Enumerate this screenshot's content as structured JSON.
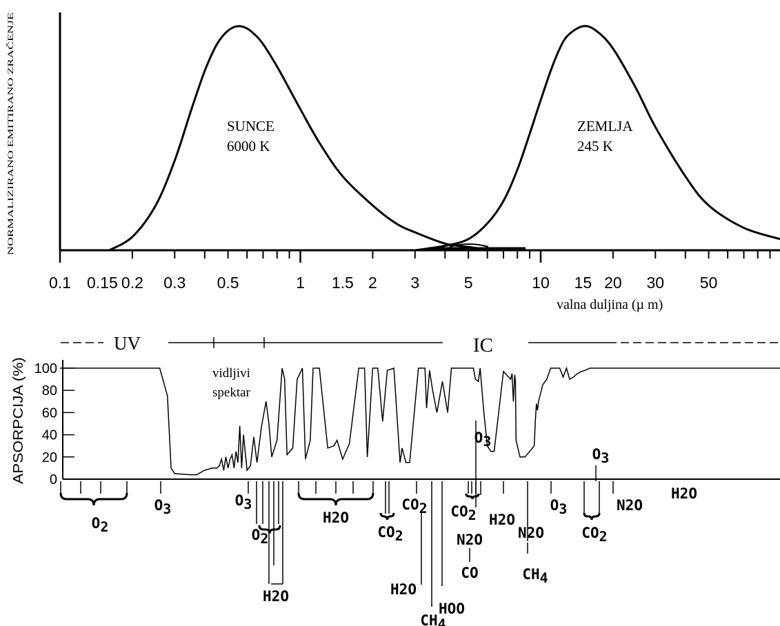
{
  "chart_data": [
    {
      "type": "line",
      "title": "",
      "ylabel": "NORMALIZIRANO EMITIRANO ZRAČENJE",
      "xlabel": "valna duljina (µ m)",
      "xscale": "log",
      "xlim": [
        0.1,
        100
      ],
      "ylim": [
        0,
        1
      ],
      "tick_labels": [
        "0.1",
        "0.15",
        "0.2",
        "0.3",
        "0.5",
        "1",
        "1.5",
        "2",
        "3",
        "5",
        "10",
        "15",
        "20",
        "30",
        "50"
      ],
      "grid": false,
      "series": [
        {
          "name": "SUNCE",
          "label_lines": [
            "SUNCE",
            "6000 K"
          ],
          "x": [
            0.16,
            0.2,
            0.25,
            0.3,
            0.35,
            0.4,
            0.45,
            0.5,
            0.55,
            0.6,
            0.65,
            0.7,
            0.8,
            0.9,
            1.0,
            1.2,
            1.5,
            2.0,
            2.5,
            3.0,
            4.0,
            5.0,
            6.0,
            8.0
          ],
          "y": [
            0.0,
            0.06,
            0.2,
            0.4,
            0.62,
            0.8,
            0.92,
            0.98,
            1.0,
            0.99,
            0.96,
            0.92,
            0.82,
            0.72,
            0.63,
            0.48,
            0.33,
            0.2,
            0.12,
            0.08,
            0.03,
            0.015,
            0.005,
            0.0
          ]
        },
        {
          "name": "ZEMLJA",
          "label_lines": [
            "ZEMLJA",
            "245 K"
          ],
          "x": [
            3.0,
            4.0,
            5.0,
            6.0,
            7.0,
            8.0,
            9.0,
            10.0,
            11.0,
            12.0,
            13.0,
            15.0,
            17.0,
            20.0,
            25.0,
            30.0,
            40.0,
            50.0,
            70.0,
            100.0
          ],
          "y": [
            0.0,
            0.02,
            0.05,
            0.12,
            0.22,
            0.36,
            0.52,
            0.67,
            0.8,
            0.9,
            0.96,
            1.0,
            0.98,
            0.9,
            0.72,
            0.55,
            0.33,
            0.2,
            0.1,
            0.05
          ]
        }
      ]
    },
    {
      "type": "line",
      "title": "",
      "ylabel": "APSORPCIJA (%)",
      "xscale": "log",
      "xlim": [
        0.1,
        100
      ],
      "ylim": [
        0,
        100
      ],
      "y_ticks": [
        0,
        20,
        40,
        60,
        80,
        100
      ],
      "grid": false,
      "regions": {
        "uv": "UV",
        "ir": "IC",
        "visible": [
          "vidljivi",
          "spektar"
        ]
      },
      "series": [
        {
          "name": "",
          "x": [
            0.1,
            0.26,
            0.28,
            0.29,
            0.3,
            0.35,
            0.37,
            0.4,
            0.43,
            0.45,
            0.46,
            0.47,
            0.48,
            0.49,
            0.5,
            0.51,
            0.52,
            0.53,
            0.54,
            0.55,
            0.56,
            0.57,
            0.58,
            0.6,
            0.62,
            0.64,
            0.66,
            0.69,
            0.72,
            0.74,
            0.76,
            0.8,
            0.84,
            0.86,
            0.88,
            0.93,
            0.97,
            1.02,
            1.05,
            1.1,
            1.13,
            1.2,
            1.3,
            1.38,
            1.42,
            1.5,
            1.6,
            1.75,
            1.85,
            1.9,
            2.0,
            2.1,
            2.2,
            2.3,
            2.45,
            2.6,
            2.65,
            2.75,
            2.85,
            3.1,
            3.3,
            3.35,
            3.45,
            3.55,
            3.7,
            3.9,
            4.1,
            4.25,
            4.3,
            4.4,
            4.55,
            4.65,
            4.75,
            4.85,
            4.95,
            5.1,
            5.25,
            5.35,
            5.5,
            5.6,
            5.8,
            6.0,
            6.2,
            6.4,
            7.0,
            7.5,
            7.6,
            7.7,
            7.8,
            7.85,
            7.9,
            8.2,
            8.6,
            9.0,
            9.4,
            9.5,
            9.6,
            9.7,
            9.8,
            9.9,
            10.2,
            10.6,
            11.0,
            12.0,
            12.4,
            12.8,
            13.2,
            13.7,
            14.2,
            14.8,
            15.3,
            16.0,
            16.5,
            17.0,
            17.5,
            18.5,
            20.0,
            22.0,
            25.0,
            30.0,
            40.0,
            60.0,
            100.0
          ],
          "y": [
            100,
            100,
            75,
            10,
            5,
            4,
            4,
            8,
            10,
            10,
            12,
            18,
            8,
            20,
            10,
            18,
            22,
            10,
            25,
            15,
            48,
            10,
            40,
            8,
            12,
            38,
            15,
            48,
            70,
            50,
            20,
            35,
            100,
            90,
            22,
            28,
            90,
            100,
            18,
            35,
            100,
            100,
            28,
            30,
            35,
            18,
            32,
            100,
            100,
            20,
            100,
            100,
            52,
            98,
            100,
            15,
            28,
            15,
            15,
            100,
            100,
            64,
            98,
            80,
            60,
            88,
            60,
            100,
            100,
            100,
            100,
            100,
            100,
            100,
            100,
            100,
            100,
            90,
            88,
            100,
            60,
            30,
            25,
            25,
            97,
            90,
            95,
            70,
            94,
            88,
            35,
            20,
            20,
            25,
            30,
            52,
            68,
            62,
            70,
            74,
            85,
            90,
            100,
            100,
            92,
            100,
            90,
            92,
            95,
            97,
            98,
            100,
            100,
            100,
            100,
            100,
            100,
            100,
            100,
            100,
            100,
            100,
            100
          ]
        }
      ],
      "absorbers": [
        "O2",
        "O3",
        "O3",
        "O2",
        "H2O",
        "H2O",
        "CO2",
        "CO2",
        "H2O",
        "CH4",
        "HOO",
        "CO2",
        "O3",
        "N2O",
        "CO",
        "H2O",
        "N2O",
        "CH4",
        "O3",
        "O3",
        "CO2",
        "N2O",
        "H2O"
      ]
    }
  ]
}
